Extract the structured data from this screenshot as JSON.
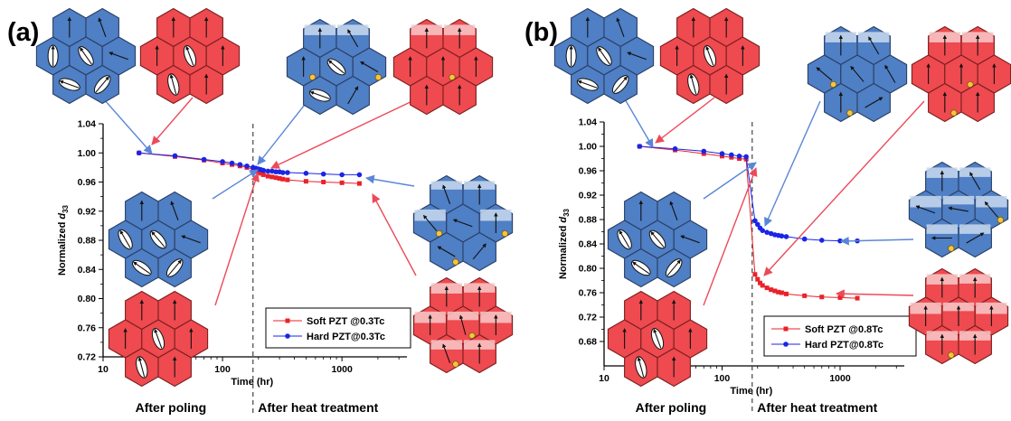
{
  "chart_data": [
    {
      "type": "line",
      "panel_label": "(a)",
      "xlabel": "Time (hr)",
      "ylabel_main": "Normalized ",
      "ylabel_italic": "d",
      "ylabel_sub": "33",
      "xscale": "log",
      "xlim": [
        10,
        3500
      ],
      "ylim": [
        0.72,
        1.04
      ],
      "xticks": [
        10,
        100,
        1000
      ],
      "xtick_labels": [
        "10",
        "100",
        "1000"
      ],
      "yticks": [
        0.72,
        0.76,
        0.8,
        0.84,
        0.88,
        0.92,
        0.96,
        1.0,
        1.04
      ],
      "ytick_labels": [
        "0.72",
        "0.76",
        "0.80",
        "0.84",
        "0.88",
        "0.92",
        "0.96",
        "1.00",
        "1.04"
      ],
      "divider_x": 180,
      "region_labels": [
        "After poling",
        "After heat treatment"
      ],
      "legend_position": "bottom-right",
      "series": [
        {
          "name": "Soft PZT @0.3Tc",
          "color": "#e8232b",
          "marker": "square",
          "x": [
            20,
            40,
            70,
            100,
            120,
            140,
            160,
            180,
            190,
            200,
            210,
            220,
            240,
            260,
            280,
            300,
            320,
            350,
            500,
            700,
            1000,
            1400
          ],
          "y": [
            1.0,
            0.995,
            0.99,
            0.986,
            0.984,
            0.982,
            0.98,
            0.978,
            0.975,
            0.973,
            0.972,
            0.97,
            0.968,
            0.967,
            0.966,
            0.965,
            0.964,
            0.963,
            0.961,
            0.96,
            0.959,
            0.958
          ]
        },
        {
          "name": "Hard PZT@0.3Tc",
          "color": "#1a25e6",
          "marker": "circle",
          "x": [
            20,
            40,
            70,
            100,
            120,
            140,
            160,
            180,
            190,
            200,
            210,
            220,
            240,
            260,
            280,
            300,
            320,
            350,
            500,
            700,
            1000,
            1400
          ],
          "y": [
            1.0,
            0.996,
            0.991,
            0.988,
            0.986,
            0.984,
            0.982,
            0.98,
            0.979,
            0.978,
            0.977,
            0.976,
            0.975,
            0.975,
            0.974,
            0.974,
            0.973,
            0.973,
            0.972,
            0.971,
            0.97,
            0.97
          ]
        }
      ]
    },
    {
      "type": "line",
      "panel_label": "(b)",
      "xlabel": "Time (hr)",
      "ylabel_main": "Normalized ",
      "ylabel_italic": "d",
      "ylabel_sub": "33",
      "xscale": "log",
      "xlim": [
        10,
        3500
      ],
      "ylim": [
        0.64,
        1.04
      ],
      "xticks": [
        10,
        100,
        1000
      ],
      "xtick_labels": [
        "10",
        "100",
        "1000"
      ],
      "yticks": [
        0.68,
        0.72,
        0.76,
        0.8,
        0.84,
        0.88,
        0.92,
        0.96,
        1.0,
        1.04
      ],
      "ytick_labels": [
        "0.68",
        "0.72",
        "0.76",
        "0.80",
        "0.84",
        "0.88",
        "0.92",
        "0.96",
        "1.00",
        "1.04"
      ],
      "divider_x": 180,
      "region_labels": [
        "After poling",
        "After heat treatment"
      ],
      "legend_position": "bottom-left",
      "series": [
        {
          "name": "Soft PZT @0.8Tc",
          "color": "#e8232b",
          "marker": "square",
          "x": [
            20,
            40,
            70,
            100,
            120,
            140,
            160,
            190,
            200,
            210,
            220,
            240,
            260,
            280,
            300,
            320,
            350,
            500,
            700,
            1000,
            1400
          ],
          "y": [
            1.0,
            0.994,
            0.988,
            0.984,
            0.982,
            0.98,
            0.979,
            0.79,
            0.782,
            0.776,
            0.772,
            0.768,
            0.765,
            0.763,
            0.761,
            0.76,
            0.758,
            0.755,
            0.753,
            0.752,
            0.751
          ]
        },
        {
          "name": "Hard PZT@0.8Tc",
          "color": "#1a25e6",
          "marker": "circle",
          "x": [
            20,
            40,
            70,
            100,
            120,
            140,
            160,
            190,
            200,
            210,
            220,
            240,
            260,
            280,
            300,
            320,
            350,
            500,
            700,
            1000,
            1400
          ],
          "y": [
            1.0,
            0.996,
            0.992,
            0.988,
            0.986,
            0.984,
            0.983,
            0.878,
            0.872,
            0.866,
            0.862,
            0.859,
            0.857,
            0.855,
            0.854,
            0.853,
            0.852,
            0.848,
            0.846,
            0.845,
            0.845
          ]
        }
      ]
    }
  ]
}
